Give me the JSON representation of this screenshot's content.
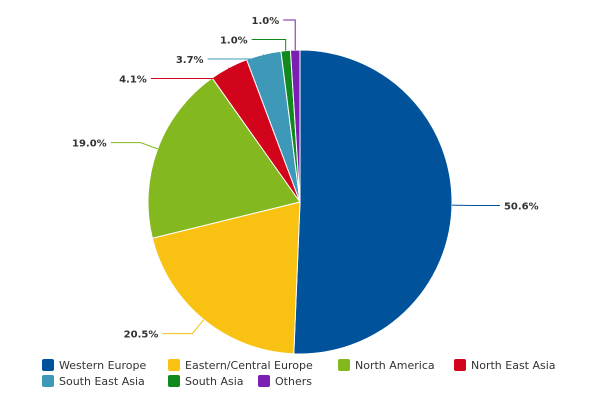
{
  "chart_data": {
    "type": "pie",
    "categories": [
      "Western Europe",
      "Eastern/Central Europe",
      "North America",
      "North East Asia",
      "South East Asia",
      "South Asia",
      "Others"
    ],
    "values": [
      50.6,
      20.5,
      19.0,
      4.1,
      3.7,
      1.0,
      1.0
    ],
    "value_labels": [
      "50.6%",
      "20.5%",
      "19.0%",
      "4.1%",
      "3.7%",
      "1.0%",
      "1.0%"
    ],
    "colors": [
      "#00529b",
      "#f9c112",
      "#84b81f",
      "#d2041b",
      "#3e98b7",
      "#108a1c",
      "#7b1fb3"
    ]
  }
}
